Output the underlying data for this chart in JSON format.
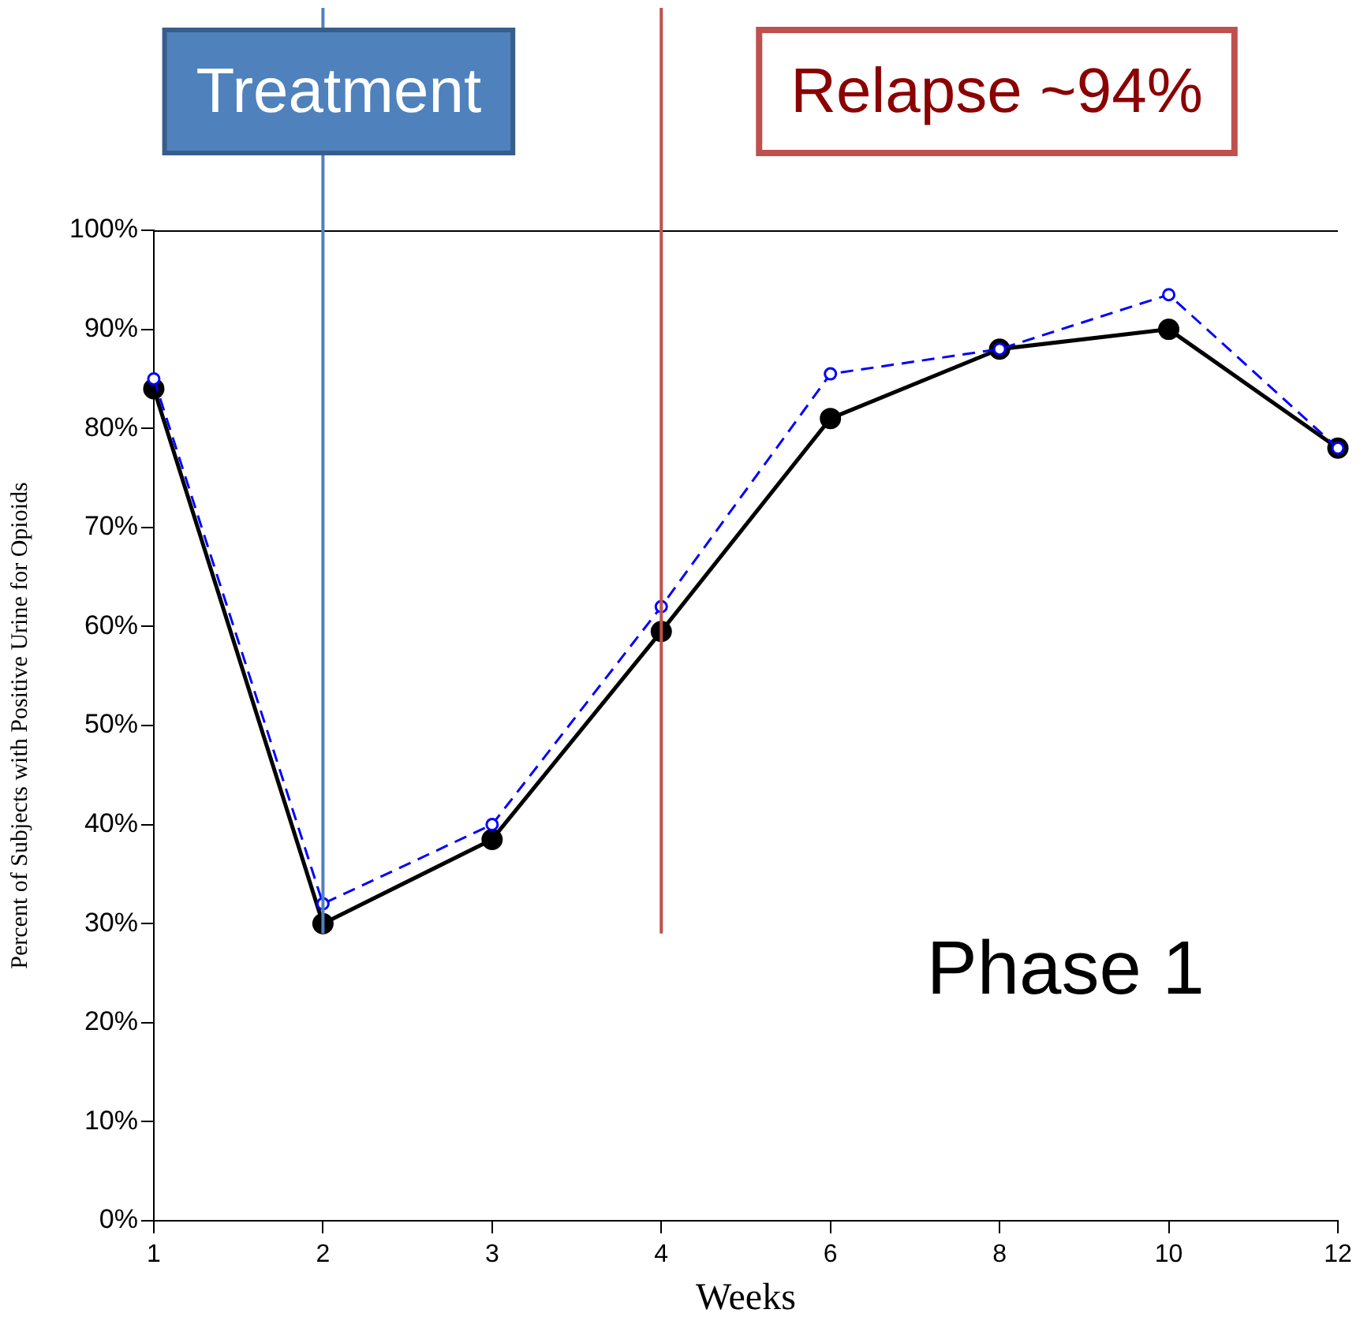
{
  "chart_data": {
    "type": "line",
    "xlabel": "Weeks",
    "ylabel": "Percent of Subjects with Positive Urine for Opioids",
    "categories": [
      "1",
      "2",
      "3",
      "4",
      "6",
      "8",
      "10",
      "12"
    ],
    "series": [
      {
        "color": "#000000",
        "values": [
          84,
          30,
          38.5,
          59.5,
          81,
          88,
          90,
          78
        ],
        "line_style": "solid"
      },
      {
        "color": "#0000ff",
        "values": [
          85,
          32,
          40,
          62,
          85.5,
          88,
          93.5,
          78
        ],
        "line_style": "dashed"
      }
    ],
    "ylim": [
      0,
      100
    ],
    "yticks": [
      {
        "value": 0,
        "label": "0%"
      },
      {
        "value": 10,
        "label": "10%"
      },
      {
        "value": 20,
        "label": "20%"
      },
      {
        "value": 30,
        "label": "30%"
      },
      {
        "value": 40,
        "label": "40%"
      },
      {
        "value": 50,
        "label": "50%"
      },
      {
        "value": 60,
        "label": "60%"
      },
      {
        "value": 70,
        "label": "70%"
      },
      {
        "value": 80,
        "label": "80%"
      },
      {
        "value": 90,
        "label": "90%"
      },
      {
        "value": 100,
        "label": "100%"
      }
    ],
    "ref_lines": [
      {
        "axis": "x",
        "value": "2",
        "label": "Treatment",
        "color": "#4f81bd"
      },
      {
        "axis": "x",
        "value": "4",
        "label": "Relapse ~94%",
        "color": "#c0504d"
      }
    ],
    "annotations": [
      "Phase 1"
    ],
    "marker": "circle",
    "grid": false,
    "legend": false
  }
}
